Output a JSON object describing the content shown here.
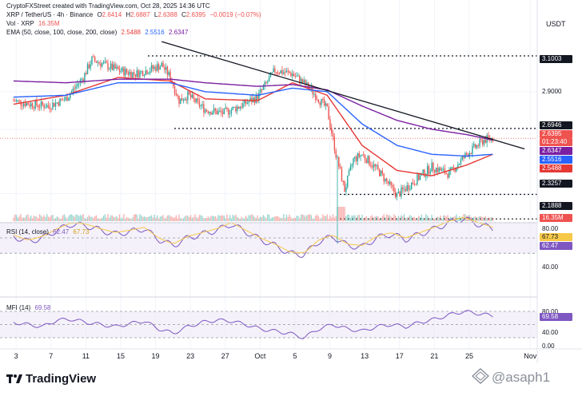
{
  "header": {
    "credit": "CryptoFXStreet created with TradingView.com, Oct 28, 2025 14:36 UTC",
    "symbol": "XRP / TetherUS · 4h · Binance",
    "o_label": "O",
    "o_value": "2.6414",
    "h_label": "H",
    "h_value": "2.6887",
    "l_label": "L",
    "l_value": "2.6388",
    "c_label": "C",
    "c_value": "2.6395",
    "change": "−0.0019 (−0.07%)",
    "vol_label": "Vol · XRP",
    "vol_value": "16.35M",
    "ema_label": "EMA (50, close, 100, close, 200, close)",
    "ema50_value": "2.5488",
    "ema100_value": "2.5516",
    "ema200_value": "2.6347",
    "currency": "USDT"
  },
  "colors": {
    "up": "#26a69a",
    "down": "#ef5350",
    "ema50": "#e53935",
    "ema100": "#2962ff",
    "ema200": "#7b1fa2",
    "rsi": "#7e57c2",
    "rsi_ma": "#f7c948",
    "mfi": "#7e57c2",
    "trend": "#131722"
  },
  "price_axis": {
    "ticks": [
      "3.1003",
      "2.9000",
      "2.6946",
      "2.3257",
      "2.1888"
    ],
    "tags": {
      "last_price": "2.6395",
      "countdown": "01:23:40",
      "ema200": "2.6347",
      "ema100": "2.5516",
      "ema50": "2.5488",
      "volume": "16.35M"
    }
  },
  "rsi_pane": {
    "label": "RSI (14, close)",
    "value": "62.47",
    "ma_value": "67.73",
    "ticks": [
      "80.00",
      "40.00"
    ],
    "tag_ma": "67.73",
    "tag_rsi": "62.47"
  },
  "mfi_pane": {
    "label": "MFI (14)",
    "value": "69.58",
    "ticks": [
      "80.00",
      "69.58",
      "40.00",
      "0.00"
    ]
  },
  "x_axis": {
    "labels": [
      "3",
      "7",
      "11",
      "15",
      "19",
      "23",
      "27",
      "Oct",
      "5",
      "9",
      "13",
      "17",
      "21",
      "25",
      "Nov"
    ]
  },
  "footer": {
    "brand": "TradingView",
    "watermark": "@asaph1"
  },
  "chart_data": {
    "type": "line",
    "title": "XRP / TetherUS · 4h · Binance",
    "ylabel": "USDT",
    "ylim": [
      2.15,
      3.2
    ],
    "levels": [
      3.1003,
      2.6946,
      2.3257,
      2.1888
    ],
    "trendline": [
      {
        "x": "Sep 20",
        "y": 3.18
      },
      {
        "x": "Oct 30",
        "y": 2.58
      }
    ],
    "series": [
      {
        "name": "XRP/USDT close",
        "x": [
          "Sep 3",
          "Sep 5",
          "Sep 7",
          "Sep 9",
          "Sep 11",
          "Sep 12",
          "Sep 13",
          "Sep 15",
          "Sep 17",
          "Sep 19",
          "Sep 20",
          "Sep 21",
          "Sep 22",
          "Sep 23",
          "Sep 25",
          "Sep 27",
          "Sep 29",
          "Oct 1",
          "Oct 3",
          "Oct 5",
          "Oct 7",
          "Oct 9",
          "Oct 10",
          "Oct 11",
          "Oct 12",
          "Oct 13",
          "Oct 15",
          "Oct 17",
          "Oct 19",
          "Oct 21",
          "Oct 23",
          "Oct 25",
          "Oct 27",
          "Oct 28"
        ],
        "values": [
          2.85,
          2.83,
          2.82,
          2.86,
          2.98,
          3.08,
          3.06,
          3.02,
          3.0,
          3.03,
          3.05,
          2.98,
          2.85,
          2.88,
          2.8,
          2.78,
          2.82,
          2.87,
          3.02,
          3.0,
          2.92,
          2.8,
          2.55,
          2.35,
          2.52,
          2.55,
          2.45,
          2.32,
          2.4,
          2.48,
          2.44,
          2.55,
          2.63,
          2.64
        ]
      },
      {
        "name": "EMA 50",
        "x": [
          "Sep 3",
          "Sep 9",
          "Sep 15",
          "Sep 21",
          "Sep 25",
          "Oct 1",
          "Oct 5",
          "Oct 9",
          "Oct 13",
          "Oct 17",
          "Oct 21",
          "Oct 25",
          "Oct 28"
        ],
        "values": [
          2.83,
          2.88,
          2.98,
          2.96,
          2.86,
          2.85,
          2.95,
          2.88,
          2.6,
          2.46,
          2.43,
          2.49,
          2.55
        ]
      },
      {
        "name": "EMA 100",
        "x": [
          "Sep 3",
          "Sep 9",
          "Sep 15",
          "Sep 21",
          "Sep 25",
          "Oct 1",
          "Oct 5",
          "Oct 9",
          "Oct 13",
          "Oct 17",
          "Oct 21",
          "Oct 25",
          "Oct 28"
        ],
        "values": [
          2.87,
          2.88,
          2.95,
          2.95,
          2.9,
          2.88,
          2.92,
          2.9,
          2.72,
          2.6,
          2.55,
          2.54,
          2.55
        ]
      },
      {
        "name": "EMA 200",
        "x": [
          "Sep 3",
          "Sep 9",
          "Sep 15",
          "Sep 21",
          "Sep 25",
          "Oct 1",
          "Oct 5",
          "Oct 9",
          "Oct 13",
          "Oct 17",
          "Oct 21",
          "Oct 25",
          "Oct 28"
        ],
        "values": [
          2.96,
          2.95,
          2.97,
          2.97,
          2.95,
          2.93,
          2.94,
          2.91,
          2.82,
          2.74,
          2.69,
          2.66,
          2.63
        ]
      },
      {
        "name": "RSI",
        "values": [
          52,
          45,
          50,
          60,
          68,
          66,
          60,
          55,
          58,
          62,
          48,
          40,
          50,
          55,
          60,
          68,
          58,
          48,
          40,
          30,
          28,
          45,
          52,
          40,
          38,
          50,
          55,
          48,
          55,
          62,
          70,
          75,
          68,
          62
        ]
      },
      {
        "name": "MFI",
        "values": [
          55,
          50,
          45,
          60,
          62,
          55,
          50,
          45,
          52,
          58,
          40,
          30,
          45,
          55,
          60,
          58,
          50,
          40,
          35,
          30,
          20,
          40,
          50,
          40,
          35,
          45,
          50,
          45,
          55,
          62,
          72,
          80,
          75,
          70
        ]
      }
    ]
  }
}
